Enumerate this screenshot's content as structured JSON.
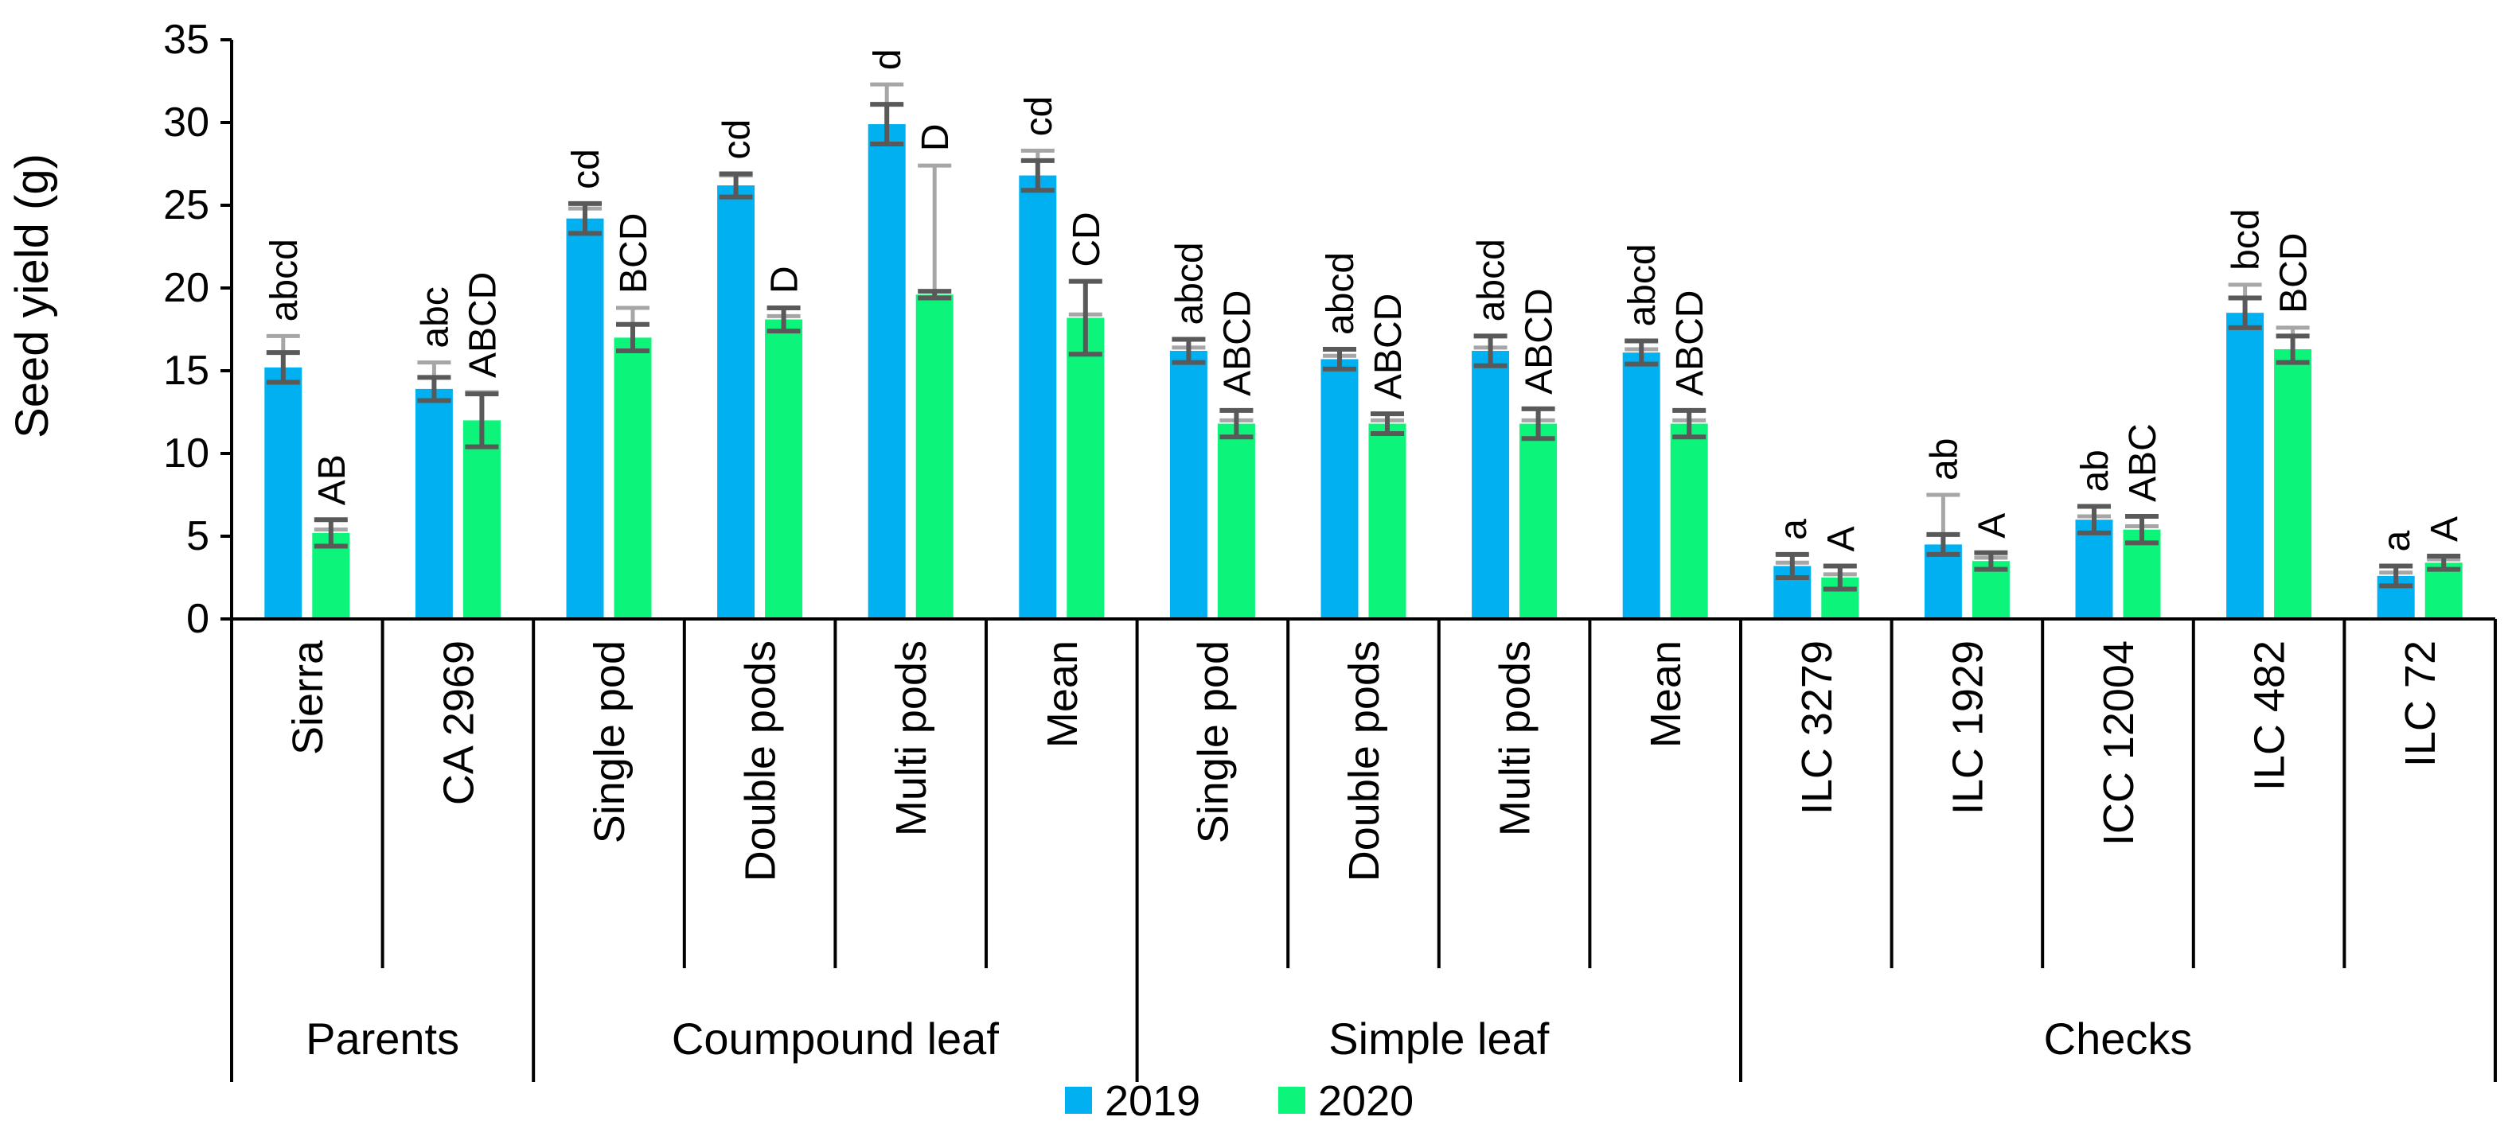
{
  "chart_data": {
    "type": "bar",
    "title": "",
    "ylabel": "Seed yield (g)",
    "xlabel": "",
    "ylim": [
      0,
      35
    ],
    "yticks": [
      0,
      5,
      10,
      15,
      20,
      25,
      30,
      35
    ],
    "grid": false,
    "legend_position": "bottom-center",
    "categories": [
      "Sierra",
      "CA 2969",
      "Single pod",
      "Double pods",
      "Multi pods",
      "Mean",
      "Single pod",
      "Double pods",
      "Multi pods",
      "Mean",
      "ILC 3279",
      "ILC 1929",
      "ICC 12004",
      "ILC 482",
      "ILC 72"
    ],
    "groups": [
      {
        "label": "Parents",
        "count": 2
      },
      {
        "label": "Coumpound leaf",
        "count": 4
      },
      {
        "label": "Simple leaf",
        "count": 4
      },
      {
        "label": "Checks",
        "count": 5
      }
    ],
    "series": [
      {
        "name": "2019",
        "color": "#00B0F0",
        "values": [
          15.2,
          13.9,
          24.2,
          26.2,
          29.9,
          26.8,
          16.2,
          15.7,
          16.2,
          16.1,
          3.2,
          4.5,
          6.0,
          18.5,
          2.6
        ],
        "err_dark": [
          0.9,
          0.7,
          0.9,
          0.7,
          1.2,
          0.9,
          0.7,
          0.6,
          0.9,
          0.7,
          0.7,
          0.6,
          0.8,
          0.9,
          0.6
        ],
        "err_light": [
          1.9,
          1.6,
          0.6,
          0.6,
          2.4,
          1.5,
          0.2,
          0.2,
          0.2,
          0.2,
          0.2,
          3.0,
          0.2,
          1.7,
          0.2
        ],
        "letters": [
          "abcd",
          "abc",
          "cd",
          "cd",
          "d",
          "cd",
          "abcd",
          "abcd",
          "abcd",
          "abcd",
          "a",
          "ab",
          "ab",
          "bcd",
          "a"
        ]
      },
      {
        "name": "2020",
        "color": "#0CF47A",
        "values": [
          5.2,
          12.0,
          17.0,
          18.1,
          19.6,
          18.2,
          11.8,
          11.8,
          11.8,
          11.8,
          2.5,
          3.5,
          5.4,
          16.3,
          3.4
        ],
        "err_dark": [
          0.8,
          1.6,
          0.8,
          0.7,
          0.2,
          2.2,
          0.8,
          0.6,
          0.9,
          0.8,
          0.7,
          0.5,
          0.8,
          0.8,
          0.4
        ],
        "err_light": [
          0.2,
          1.7,
          1.8,
          0.2,
          7.8,
          0.2,
          0.2,
          0.2,
          0.2,
          0.2,
          0.2,
          0.2,
          0.2,
          1.3,
          0.2
        ],
        "letters": [
          "AB",
          "ABCD",
          "BCD",
          "D",
          "D",
          "CD",
          "ABCD",
          "ABCD",
          "ABCD",
          "ABCD",
          "A",
          "A",
          "ABC",
          "BCD",
          "A"
        ]
      }
    ]
  }
}
